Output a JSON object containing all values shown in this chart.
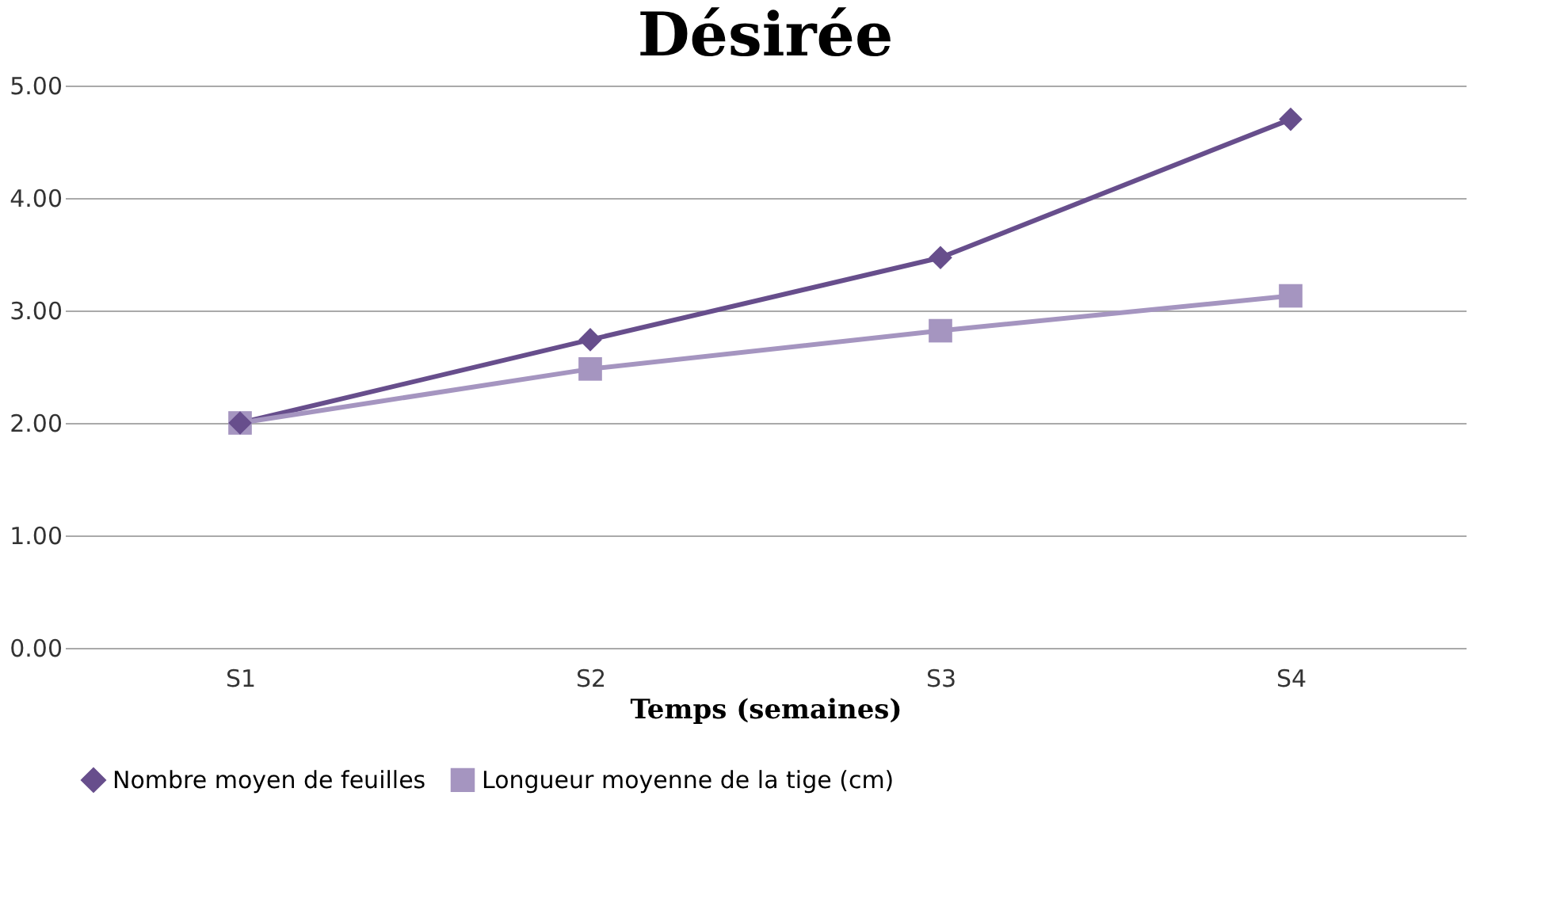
{
  "chart_data": {
    "type": "line",
    "title": "Désirée",
    "xlabel": "Temps (semaines)",
    "categories": [
      "S1",
      "S2",
      "S3",
      "S4"
    ],
    "series": [
      {
        "name": "Nombre moyen de feuilles",
        "color": "#674e8c",
        "marker": "diamond",
        "values": [
          2.0,
          2.74,
          3.47,
          4.7
        ]
      },
      {
        "name": "Longueur moyenne de la tige (cm)",
        "color": "#a595c0",
        "marker": "square",
        "values": [
          2.0,
          2.48,
          2.82,
          3.13
        ]
      }
    ],
    "ylim": [
      0,
      5
    ],
    "yticks": [
      {
        "value": 0,
        "label": "0.00"
      },
      {
        "value": 1,
        "label": "1.00"
      },
      {
        "value": 2,
        "label": "2.00"
      },
      {
        "value": 3,
        "label": "3.00"
      },
      {
        "value": 4,
        "label": "4.00"
      },
      {
        "value": 5,
        "label": "5.00"
      }
    ],
    "grid": "y",
    "legend": "bottom"
  }
}
